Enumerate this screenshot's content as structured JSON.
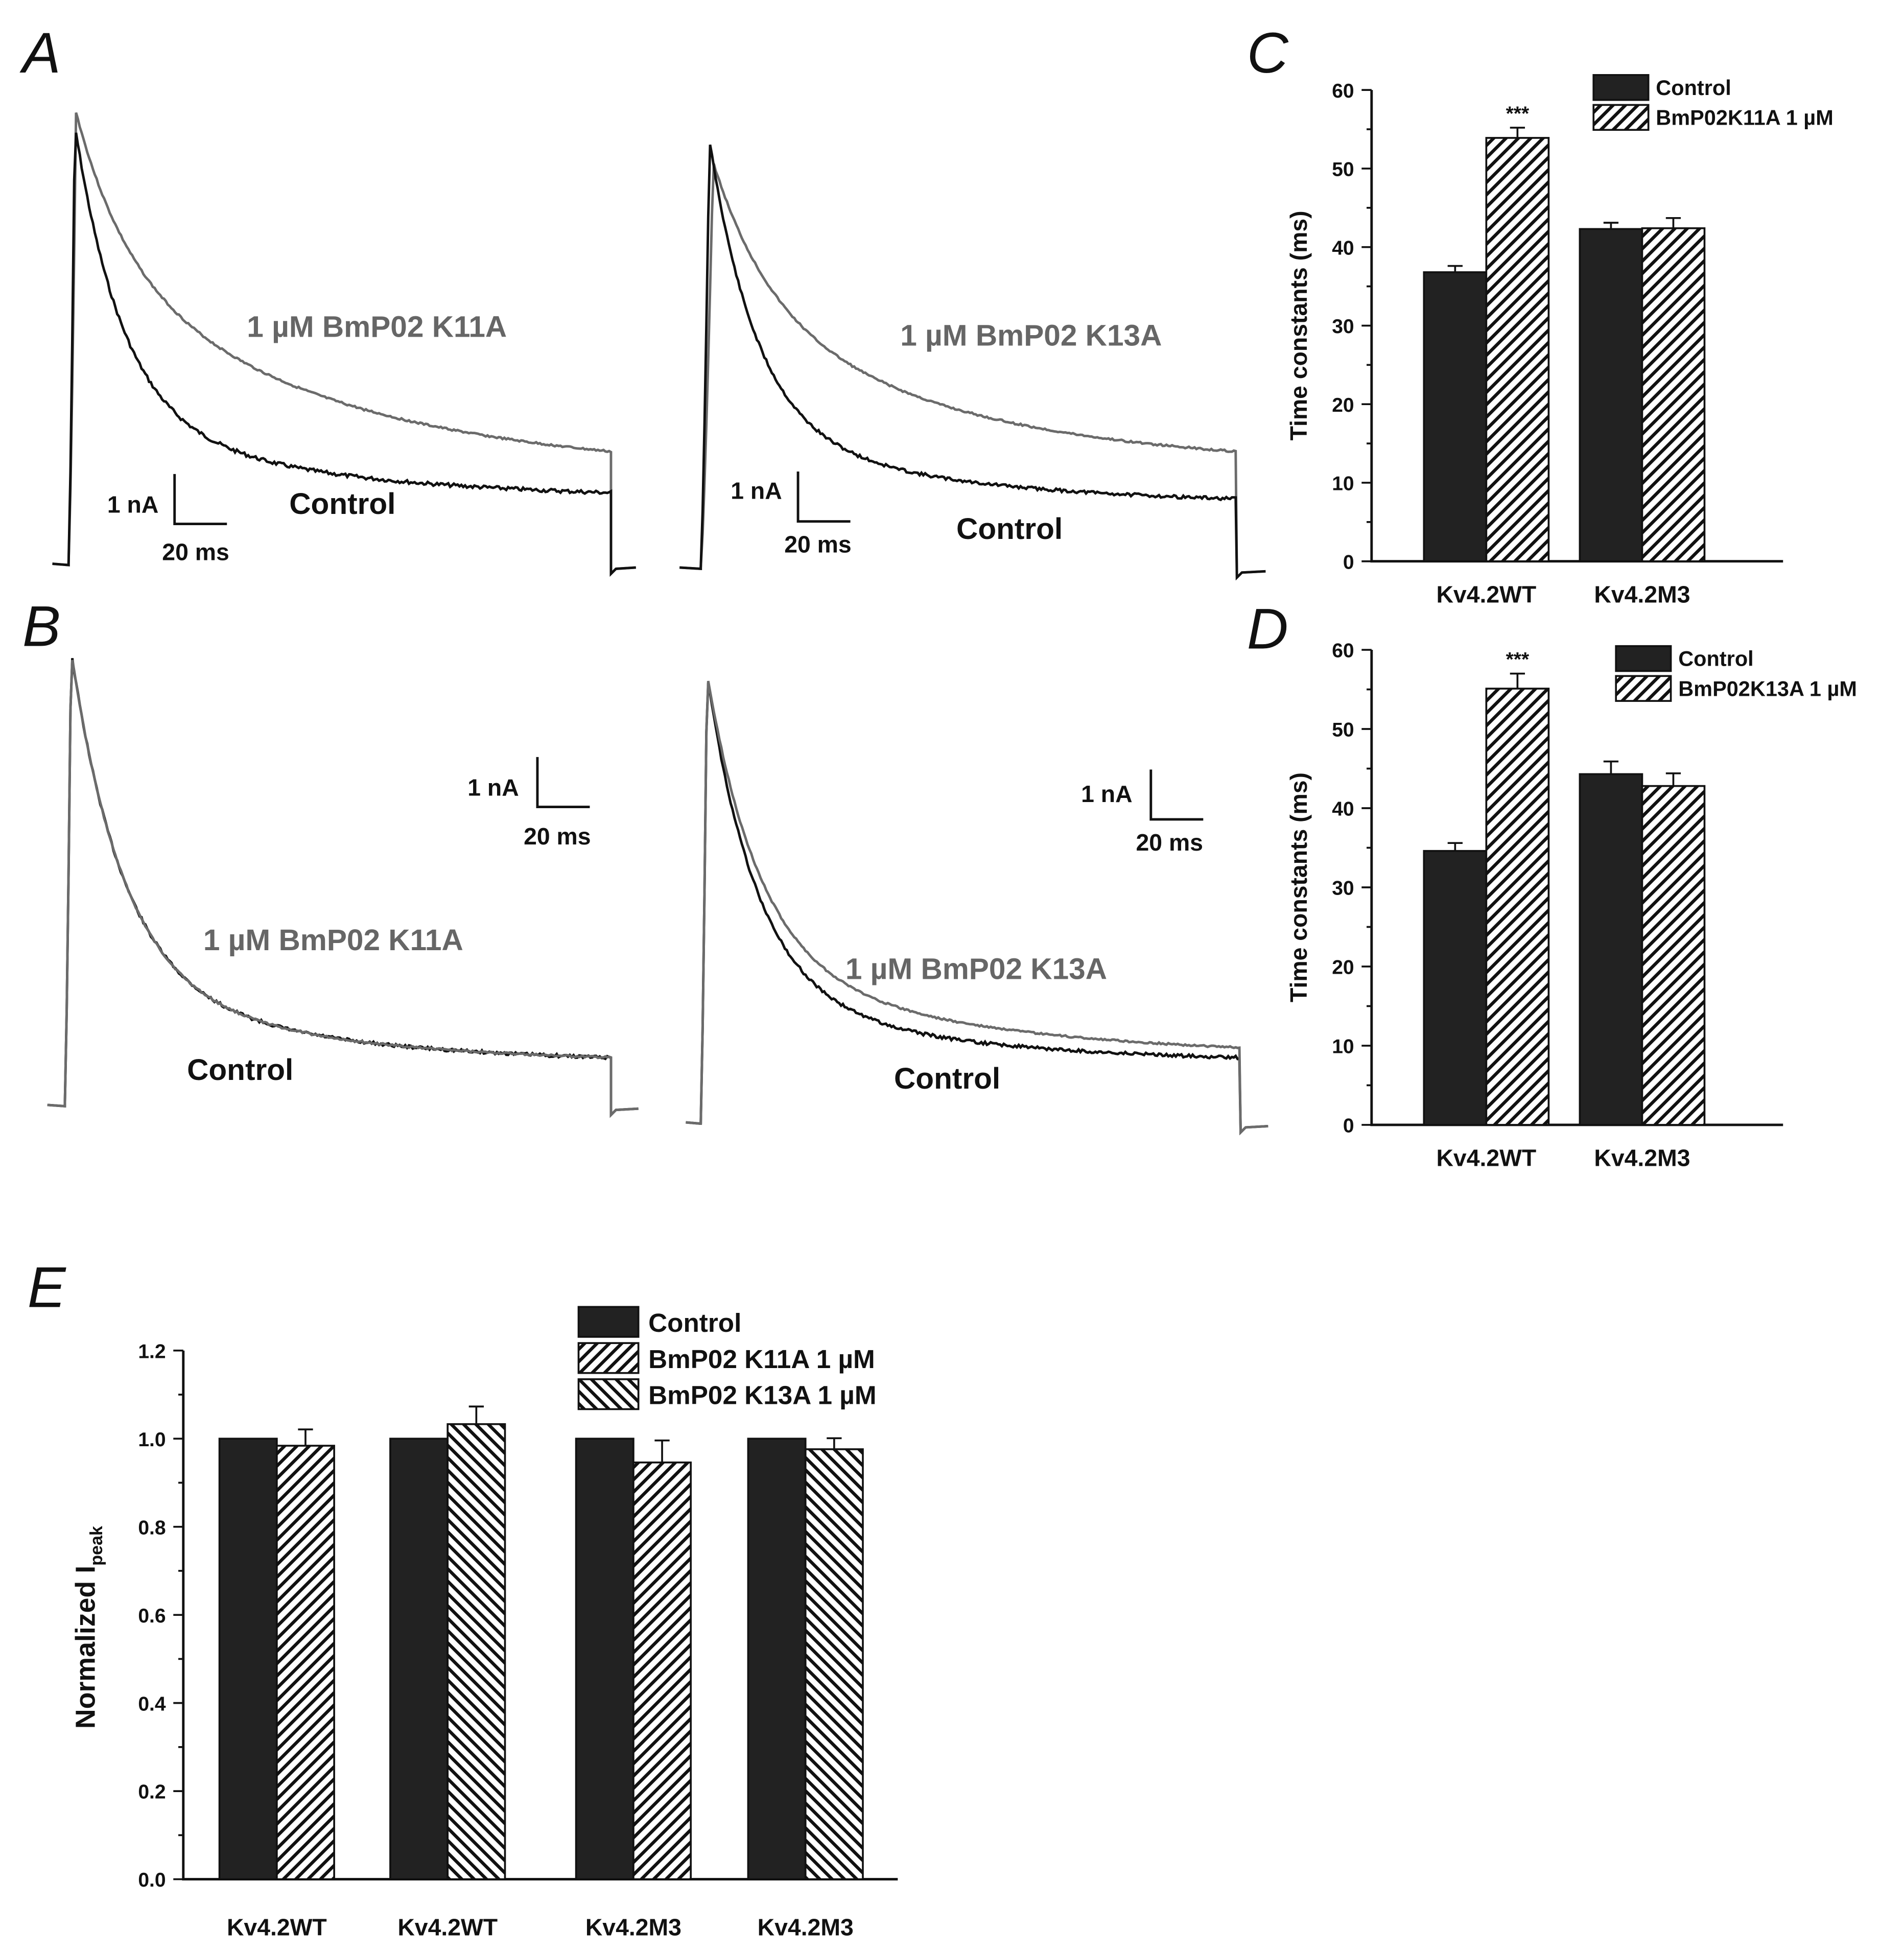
{
  "colors": {
    "control_trace": "#111111",
    "toxin_trace": "#6b6b6b",
    "bar_fill": "#222222"
  },
  "panels": {
    "A": {
      "letter": "A",
      "left": {
        "toxin_label": "1 µM BmP02 K11A",
        "control_label": "Control",
        "scale_current": "1 nA",
        "scale_time": "20 ms"
      },
      "right": {
        "toxin_label": "1 µM BmP02 K13A",
        "control_label": "Control",
        "scale_current": "1 nA",
        "scale_time": "20 ms"
      }
    },
    "B": {
      "letter": "B",
      "left": {
        "toxin_label": "1 µM BmP02 K11A",
        "control_label": "Control",
        "scale_current": "1 nA",
        "scale_time": "20 ms"
      },
      "right": {
        "toxin_label": "1 µM BmP02 K13A",
        "control_label": "Control",
        "scale_current": "1 nA",
        "scale_time": "20 ms"
      }
    }
  },
  "chart_data": [
    {
      "id": "C",
      "letter": "C",
      "type": "bar",
      "ylabel": "Time constants (ms)",
      "ylim": [
        0,
        60
      ],
      "yticks": [
        "0",
        "10",
        "20",
        "30",
        "40",
        "50",
        "60"
      ],
      "categories": [
        "Kv4.2WT",
        "Kv4.2M3"
      ],
      "series": [
        {
          "name": "Control",
          "pattern": "solid",
          "values": [
            36.8,
            42.3
          ],
          "errors": [
            0.8,
            0.8
          ]
        },
        {
          "name": "BmP02K11A 1 µM",
          "pattern": "back",
          "values": [
            53.9,
            42.4
          ],
          "errors": [
            1.3,
            1.3
          ]
        }
      ],
      "annotations": [
        {
          "text": "***",
          "category": "Kv4.2WT",
          "series": 1
        }
      ],
      "legend": "top-right"
    },
    {
      "id": "D",
      "letter": "D",
      "type": "bar",
      "ylabel": "Time constants (ms)",
      "ylim": [
        0,
        60
      ],
      "yticks": [
        "0",
        "10",
        "20",
        "30",
        "40",
        "50",
        "60"
      ],
      "categories": [
        "Kv4.2WT",
        "Kv4.2M3"
      ],
      "series": [
        {
          "name": "Control",
          "pattern": "solid",
          "values": [
            34.6,
            44.3
          ],
          "errors": [
            1.0,
            1.6
          ]
        },
        {
          "name": "BmP02K13A 1 µM",
          "pattern": "back",
          "values": [
            55.1,
            42.8
          ],
          "errors": [
            1.9,
            1.6
          ]
        }
      ],
      "annotations": [
        {
          "text": "***",
          "category": "Kv4.2WT",
          "series": 1
        }
      ],
      "legend": "top-right"
    },
    {
      "id": "E",
      "letter": "E",
      "type": "bar",
      "ylabel": "Normalized I",
      "ylabel_sub": "peak",
      "ylim": [
        0,
        1.2
      ],
      "yticks": [
        "0.0",
        "0.2",
        "0.4",
        "0.6",
        "0.8",
        "1.0",
        "1.2"
      ],
      "categories": [
        "Kv4.2WT",
        "Kv4.2WT",
        "Kv4.2M3",
        "Kv4.2M3"
      ],
      "groups": [
        {
          "control": 1.0,
          "treated": 0.984,
          "error": 0.037,
          "treatment": "BmP02 K11A 1 µM"
        },
        {
          "control": 1.0,
          "treated": 1.033,
          "error": 0.04,
          "treatment": "BmP02 K13A 1 µM"
        },
        {
          "control": 1.0,
          "treated": 0.946,
          "error": 0.05,
          "treatment": "BmP02 K11A 1 µM"
        },
        {
          "control": 1.0,
          "treated": 0.976,
          "error": 0.025,
          "treatment": "BmP02 K13A 1 µM"
        }
      ],
      "legend_entries": [
        {
          "name": "Control",
          "pattern": "solid"
        },
        {
          "name": "BmP02 K11A 1 µM",
          "pattern": "back"
        },
        {
          "name": "BmP02 K13A 1 µM",
          "pattern": "fwd"
        }
      ],
      "legend": "top-right"
    }
  ]
}
